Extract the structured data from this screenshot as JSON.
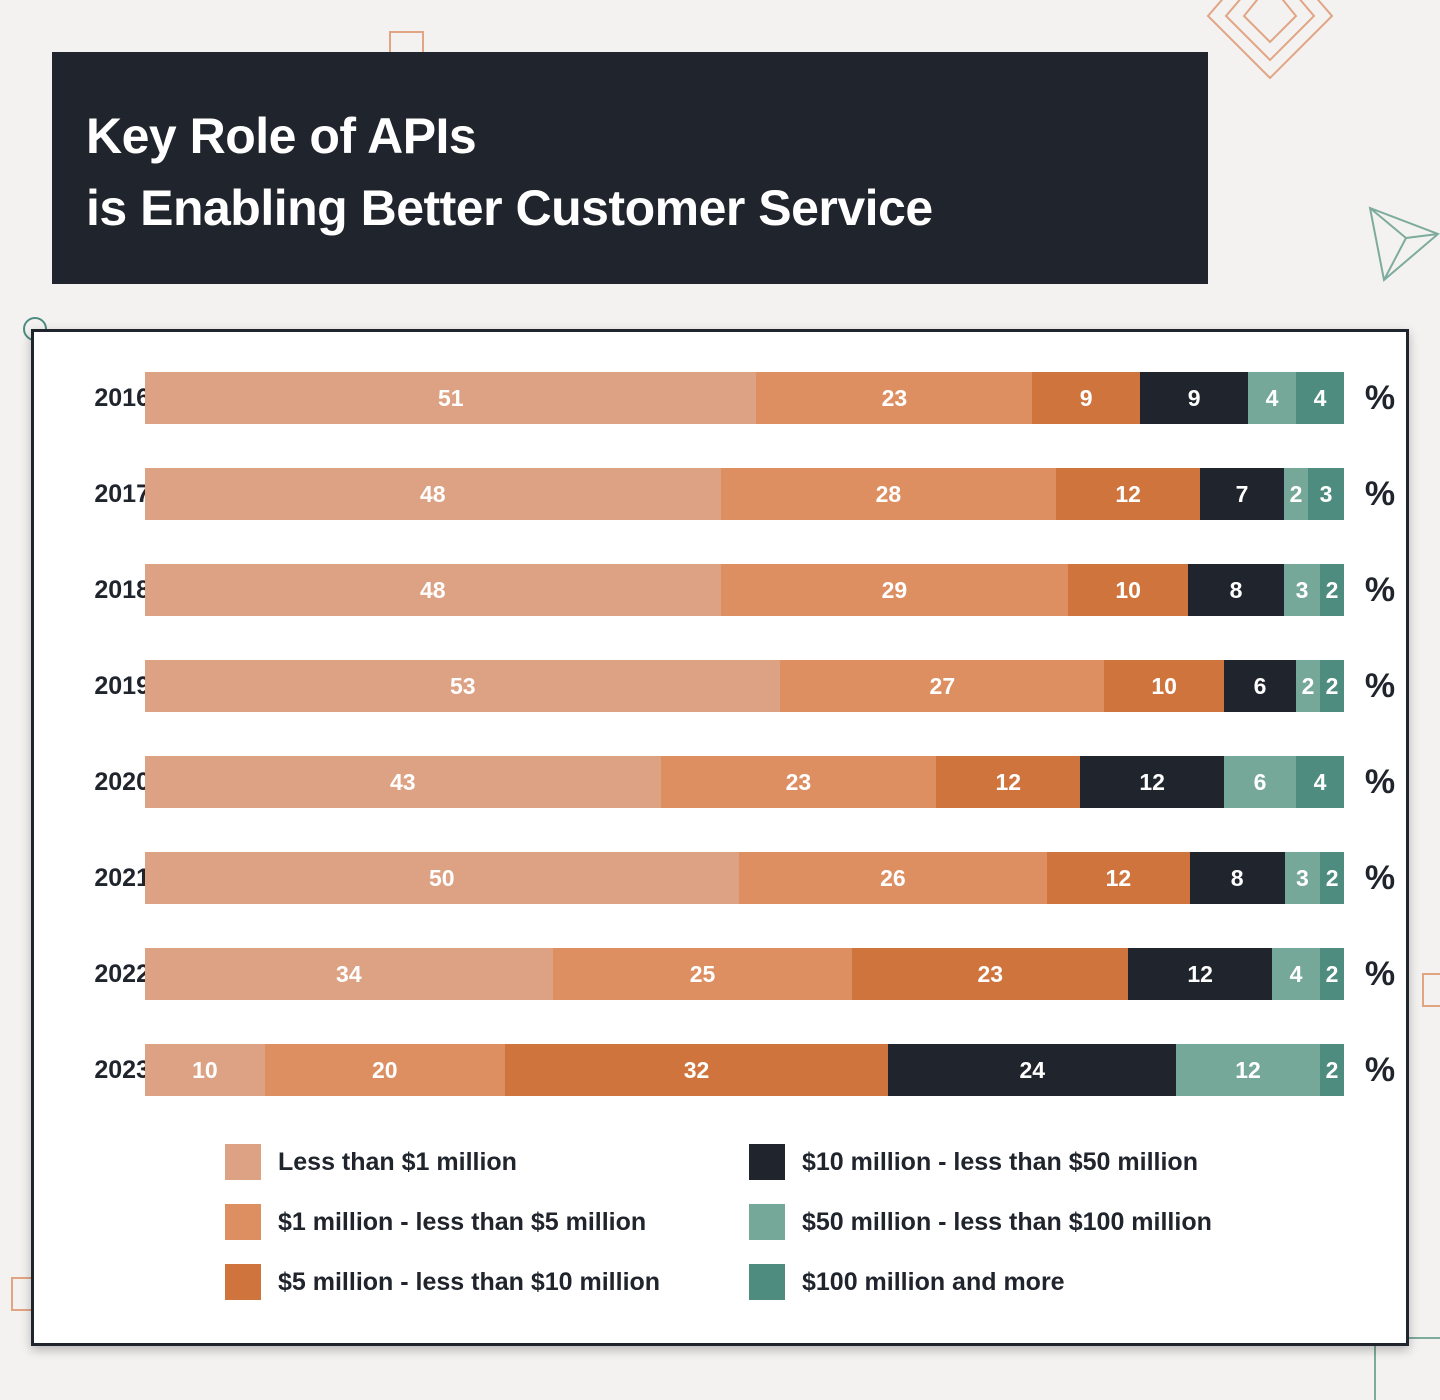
{
  "header": {
    "title_line1": "Key Role of APIs",
    "title_line2": "is Enabling Better Customer Service"
  },
  "colors": {
    "lt1m": "#dca283",
    "m1_5": "#dd8f62",
    "m5_10": "#d0743d",
    "m10_50": "#20242c",
    "m50_100": "#76a89a",
    "m100plus": "#4e8c7f",
    "decor_orange": "#e2a584",
    "decor_green": "#7dab9d"
  },
  "chart_data": {
    "type": "bar",
    "orientation": "horizontal",
    "stacked": true,
    "unit": "%",
    "categories": [
      "2016",
      "2017",
      "2018",
      "2019",
      "2020",
      "2021",
      "2022",
      "2023"
    ],
    "series": [
      {
        "key": "lt1m",
        "name": "Less than $1 million",
        "values": [
          51,
          48,
          48,
          53,
          43,
          50,
          34,
          10
        ]
      },
      {
        "key": "m1_5",
        "name": "$1 million - less than $5 million",
        "values": [
          23,
          28,
          29,
          27,
          23,
          26,
          25,
          20
        ]
      },
      {
        "key": "m5_10",
        "name": "$5 million - less than $10 million",
        "values": [
          9,
          12,
          10,
          10,
          12,
          12,
          23,
          32
        ]
      },
      {
        "key": "m10_50",
        "name": "$10 million - less than $50 million",
        "values": [
          9,
          7,
          8,
          6,
          12,
          8,
          12,
          24
        ]
      },
      {
        "key": "m50_100",
        "name": "$50 million - less than $100 million",
        "values": [
          4,
          2,
          3,
          2,
          6,
          3,
          4,
          12
        ]
      },
      {
        "key": "m100plus",
        "name": "$100 million and more",
        "values": [
          4,
          3,
          2,
          2,
          4,
          2,
          2,
          2
        ]
      }
    ],
    "legend_position": "bottom"
  }
}
